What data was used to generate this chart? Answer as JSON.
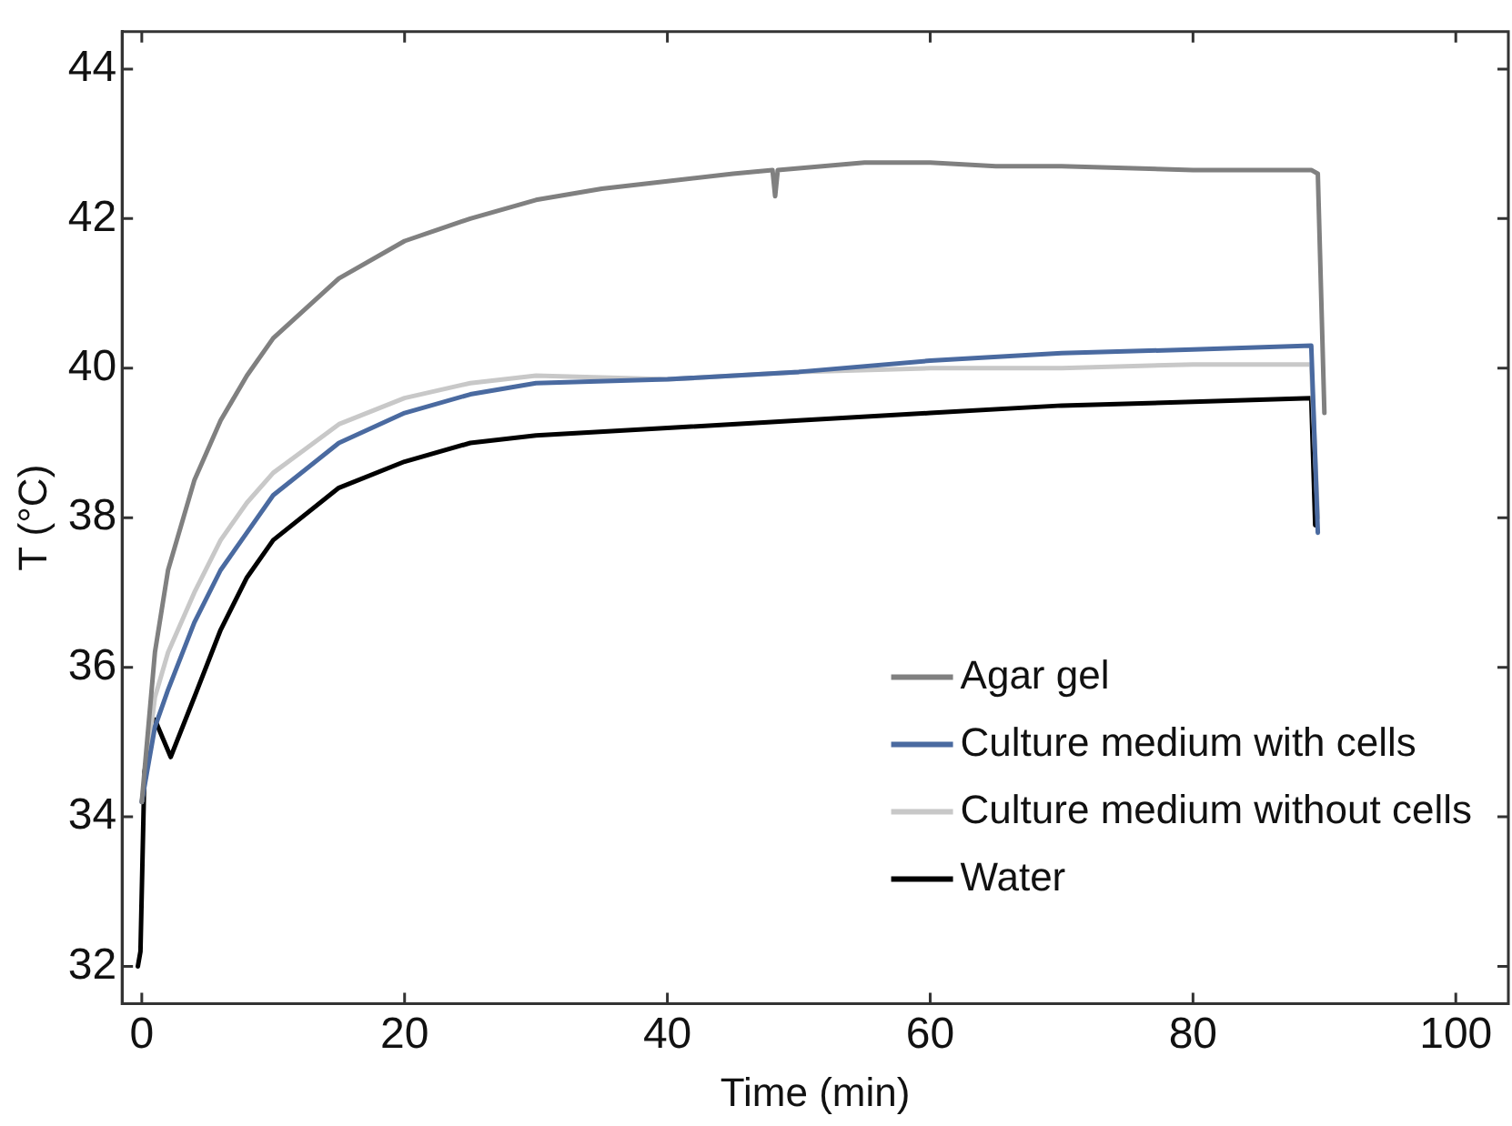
{
  "chart_data": {
    "type": "line",
    "xlabel": "Time (min)",
    "ylabel": "T (°C)",
    "xlim": [
      -1.5,
      104
    ],
    "xticks": [
      0,
      20,
      40,
      60,
      80,
      100
    ],
    "ylim": [
      31.5,
      44.5
    ],
    "yticks": [
      32,
      34,
      36,
      38,
      40,
      42,
      44
    ],
    "grid": false,
    "legend": "bottom right",
    "marker": "none",
    "line_style": "solid",
    "series": [
      {
        "name": "Agar gel",
        "color": "#808080",
        "x": [
          0,
          1,
          2,
          4,
          6,
          8,
          10,
          15,
          20,
          25,
          30,
          35,
          40,
          45,
          48,
          48.2,
          48.4,
          55,
          60,
          65,
          70,
          80,
          89,
          89.5,
          90
        ],
        "values": [
          34.2,
          36.2,
          37.3,
          38.5,
          39.3,
          39.9,
          40.4,
          41.2,
          41.7,
          42.0,
          42.25,
          42.4,
          42.5,
          42.6,
          42.65,
          42.3,
          42.65,
          42.75,
          42.75,
          42.7,
          42.7,
          42.65,
          42.65,
          42.6,
          39.4
        ]
      },
      {
        "name": "Culture medium with cells",
        "color": "#4a6aa0",
        "x": [
          0,
          1,
          2,
          4,
          6,
          8,
          10,
          15,
          20,
          25,
          30,
          40,
          50,
          60,
          70,
          80,
          89,
          89.5
        ],
        "values": [
          34.2,
          35.2,
          35.7,
          36.6,
          37.3,
          37.8,
          38.3,
          39.0,
          39.4,
          39.65,
          39.8,
          39.85,
          39.95,
          40.1,
          40.2,
          40.25,
          40.3,
          37.8
        ]
      },
      {
        "name": "Culture medium without cells",
        "color": "#c8c8c8",
        "x": [
          0,
          1,
          2,
          4,
          6,
          8,
          10,
          15,
          20,
          25,
          30,
          40,
          50,
          60,
          70,
          80,
          89,
          89.5
        ],
        "values": [
          34.2,
          35.6,
          36.2,
          37.0,
          37.7,
          38.2,
          38.6,
          39.25,
          39.6,
          39.8,
          39.9,
          39.85,
          39.95,
          40.0,
          40.0,
          40.05,
          40.05,
          38.0
        ]
      },
      {
        "name": "Water",
        "color": "#000000",
        "x": [
          -0.3,
          -0.1,
          0.2,
          1,
          2.2,
          4,
          6,
          8,
          10,
          15,
          20,
          25,
          30,
          40,
          50,
          60,
          70,
          80,
          89,
          89.3
        ],
        "values": [
          32.0,
          32.2,
          34.6,
          35.3,
          34.8,
          35.6,
          36.5,
          37.2,
          37.7,
          38.4,
          38.75,
          39.0,
          39.1,
          39.2,
          39.3,
          39.4,
          39.5,
          39.55,
          39.6,
          37.9
        ]
      }
    ]
  }
}
